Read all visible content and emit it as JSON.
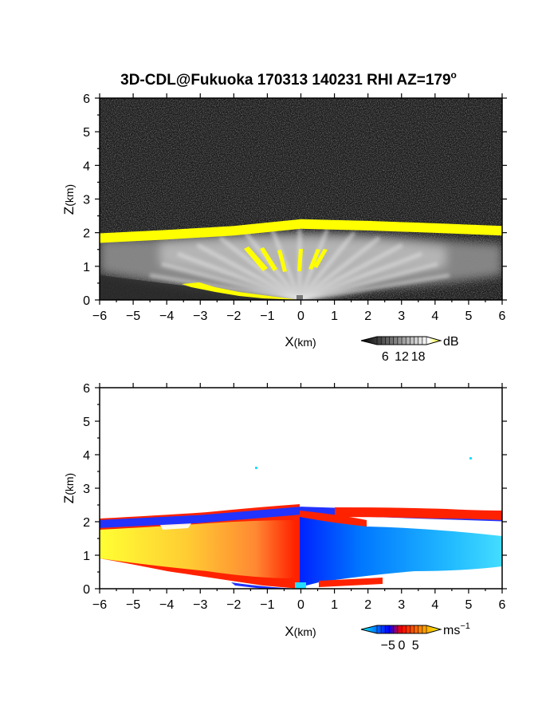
{
  "title": "3D-CDL@Fukuoka 170313 140231 RHI AZ=179",
  "title_superscript": "o",
  "chart_data": [
    {
      "type": "heatmap",
      "variable": "signal intensity",
      "xlabel": "X",
      "xlabel_unit": "(km)",
      "ylabel": "Z",
      "ylabel_unit": "(km)",
      "xlim": [
        -6,
        6
      ],
      "ylim": [
        0,
        6
      ],
      "xticks": [
        -6,
        -5,
        -4,
        -3,
        -2,
        -1,
        0,
        1,
        2,
        3,
        4,
        5,
        6
      ],
      "yticks": [
        0,
        1,
        2,
        3,
        4,
        5,
        6
      ],
      "colorbar": {
        "unit": "dB",
        "ticks": [
          6,
          12,
          18
        ],
        "colors": [
          "#000000",
          "#ffffff",
          "#ffff00"
        ]
      },
      "features": {
        "boundary_layer_top_km": [
          {
            "x": -6,
            "z": 1.98
          },
          {
            "x": -4,
            "z": 2.08
          },
          {
            "x": -2,
            "z": 2.2
          },
          {
            "x": 0,
            "z": 2.4
          },
          {
            "x": 2,
            "z": 2.35
          },
          {
            "x": 4,
            "z": 2.28
          },
          {
            "x": 6,
            "z": 2.2
          }
        ]
      }
    },
    {
      "type": "heatmap",
      "variable": "radial velocity",
      "xlabel": "X",
      "xlabel_unit": "(km)",
      "ylabel": "Z",
      "ylabel_unit": "(km)",
      "xlim": [
        -6,
        6
      ],
      "ylim": [
        0,
        6
      ],
      "xticks": [
        -6,
        -5,
        -4,
        -3,
        -2,
        -1,
        0,
        1,
        2,
        3,
        4,
        5,
        6
      ],
      "yticks": [
        0,
        1,
        2,
        3,
        4,
        5,
        6
      ],
      "colorbar": {
        "unit": "ms",
        "unit_superscript": "−1",
        "ticks": [
          "−5",
          "0",
          "5"
        ],
        "tick_values": [
          -5,
          0,
          5
        ],
        "colors": [
          "#00ffff",
          "#0000ff",
          "#ff0000",
          "#ffff00"
        ]
      },
      "features": {
        "echo_top_km": [
          {
            "x": -6,
            "z": 2.05
          },
          {
            "x": -3,
            "z": 2.2
          },
          {
            "x": 0,
            "z": 2.45
          },
          {
            "x": 3,
            "z": 2.35
          },
          {
            "x": 6,
            "z": 2.25
          }
        ]
      }
    }
  ]
}
